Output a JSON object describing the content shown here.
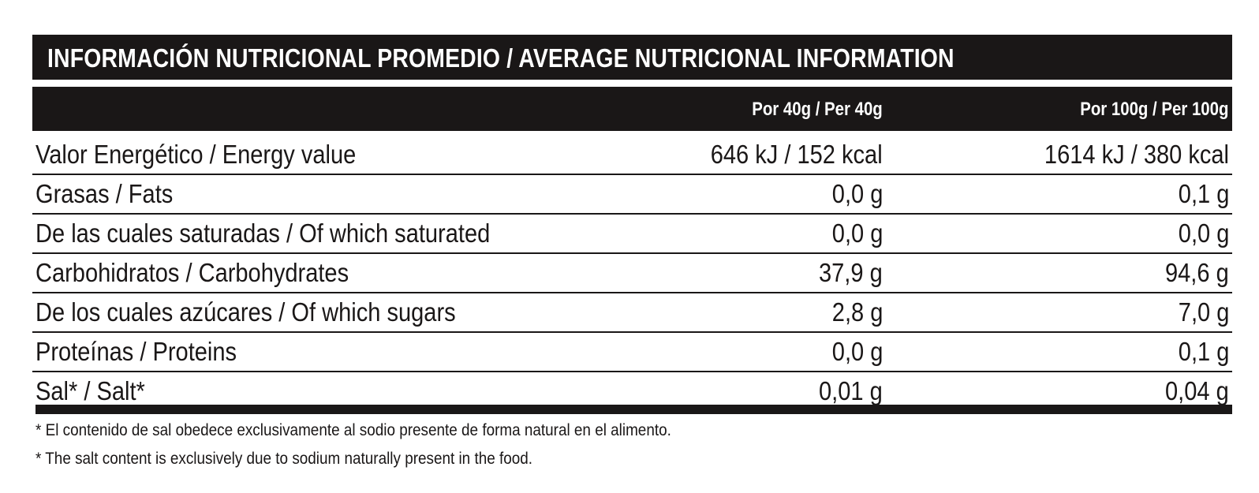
{
  "title": "INFORMACIÓN NUTRICIONAL PROMEDIO / AVERAGE NUTRICIONAL INFORMATION",
  "columns": {
    "per_40g": "Por 40g / Per 40g",
    "per_100g": "Por 100g / Per 100g"
  },
  "rows": [
    {
      "label": "Valor Energético / Energy value",
      "per_40g": "646 kJ / 152 kcal",
      "per_100g": "1614 kJ / 380 kcal"
    },
    {
      "label": "Grasas / Fats",
      "per_40g": "0,0 g",
      "per_100g": "0,1 g"
    },
    {
      "label": "De las cuales saturadas / Of which saturated",
      "per_40g": "0,0 g",
      "per_100g": "0,0 g"
    },
    {
      "label": "Carbohidratos / Carbohydrates",
      "per_40g": "37,9 g",
      "per_100g": "94,6 g"
    },
    {
      "label": "De los cuales azúcares / Of which sugars",
      "per_40g": "2,8 g",
      "per_100g": "7,0 g"
    },
    {
      "label": "Proteínas / Proteins",
      "per_40g": "0,0 g",
      "per_100g": "0,1 g"
    },
    {
      "label": "Sal* / Salt*",
      "per_40g": "0,01 g",
      "per_100g": "0,04 g"
    }
  ],
  "footnotes": [
    "* El contenido de sal obedece exclusivamente al sodio presente de forma natural en el alimento.",
    "* The salt content is exclusively due to sodium naturally present in the food."
  ],
  "colors": {
    "ink": "#1a1717",
    "background": "#ffffff"
  }
}
